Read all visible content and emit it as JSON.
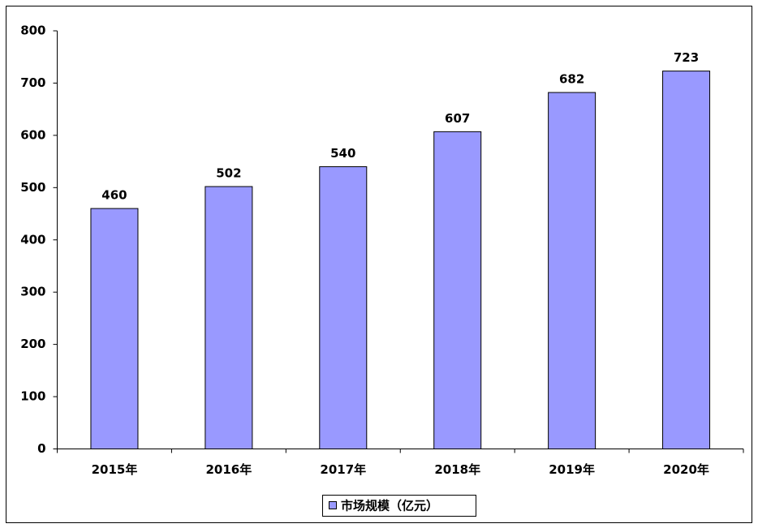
{
  "chart_data": {
    "type": "bar",
    "categories": [
      "2015年",
      "2016年",
      "2017年",
      "2018年",
      "2019年",
      "2020年"
    ],
    "series": [
      {
        "name": "市场规模（亿元）",
        "color": "#9999ff",
        "values": [
          460,
          502,
          540,
          607,
          682,
          723
        ]
      }
    ],
    "ylim": [
      0,
      800
    ],
    "yticks": [
      0,
      100,
      200,
      300,
      400,
      500,
      600,
      700,
      800
    ],
    "grid": false,
    "legend": "bottom"
  }
}
